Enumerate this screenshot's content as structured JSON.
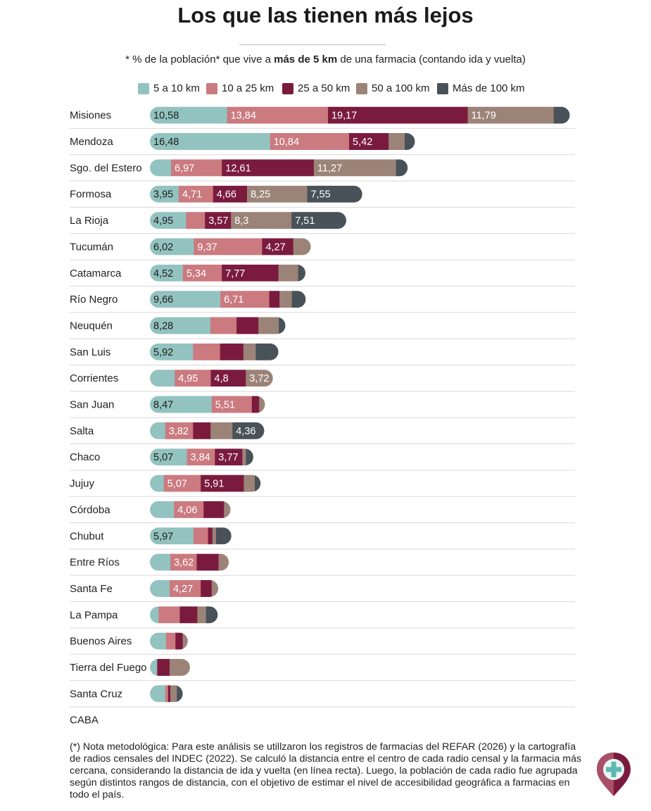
{
  "title": "Los que las tienen más lejos",
  "subtitle": {
    "prefix": "* % de la población* que vive a ",
    "bold": "más de 5 km",
    "suffix": " de una farmacia (contando ida y vuelta)"
  },
  "legend": [
    {
      "label": "5 a 10 km",
      "color": "#93c3c0"
    },
    {
      "label": "10 a 25 km",
      "color": "#cb7a80"
    },
    {
      "label": "25 a 50 km",
      "color": "#7a1b3e"
    },
    {
      "label": "50 a 100 km",
      "color": "#9c8378"
    },
    {
      "label": "Más de 100 km",
      "color": "#485258"
    }
  ],
  "chart_data": {
    "type": "bar",
    "orientation": "horizontal",
    "stacked": true,
    "unit": "% de la población",
    "series": [
      {
        "name": "5 a 10 km",
        "color": "#93c3c0",
        "values": [
          10.58,
          16.48,
          2.9,
          3.95,
          4.95,
          6.02,
          4.52,
          9.66,
          8.28,
          5.92,
          3.4,
          8.47,
          2.1,
          5.07,
          1.9,
          3.3,
          5.97,
          2.8,
          2.7,
          1.2,
          2.2,
          1.0,
          2.1,
          0
        ]
      },
      {
        "name": "10 a 25 km",
        "color": "#cb7a80",
        "values": [
          13.84,
          10.84,
          6.97,
          4.71,
          2.6,
          9.37,
          5.34,
          6.71,
          3.6,
          3.7,
          4.95,
          5.51,
          3.82,
          3.84,
          5.07,
          4.06,
          2.0,
          3.62,
          4.27,
          2.9,
          1.3,
          0,
          0.4,
          0
        ]
      },
      {
        "name": "25 a 50 km",
        "color": "#7a1b3e",
        "values": [
          19.17,
          5.42,
          12.61,
          4.66,
          3.57,
          4.27,
          7.77,
          1.4,
          3.0,
          3.2,
          4.8,
          1.0,
          2.4,
          3.77,
          5.91,
          2.8,
          0.6,
          3.0,
          1.5,
          2.4,
          1.0,
          1.7,
          0.3,
          0
        ]
      },
      {
        "name": "50 a 100 km",
        "color": "#9c8378",
        "values": [
          11.79,
          2.2,
          11.27,
          8.25,
          8.3,
          2.4,
          2.7,
          1.7,
          2.8,
          1.7,
          3.72,
          0.8,
          3.0,
          0.5,
          1.5,
          0.9,
          0.5,
          1.4,
          0.9,
          1.2,
          0.7,
          2.8,
          0.9,
          0
        ]
      },
      {
        "name": "Más de 100 km",
        "color": "#485258",
        "values": [
          2.2,
          1.4,
          1.6,
          7.55,
          7.51,
          0,
          1.0,
          1.9,
          0.9,
          3.1,
          0,
          0,
          4.36,
          1.0,
          0.8,
          0,
          2.1,
          0,
          0,
          1.6,
          0,
          0,
          0.8,
          0
        ]
      }
    ],
    "categories": [
      "Misiones",
      "Mendoza",
      "Sgo. del Estero",
      "Formosa",
      "La Rioja",
      "Tucumán",
      "Catamarca",
      "Río Negro",
      "Neuquén",
      "San Luis",
      "Corrientes",
      "San Juan",
      "Salta",
      "Chaco",
      "Jujuy",
      "Córdoba",
      "Chubut",
      "Entre Ríos",
      "Santa Fe",
      "La Pampa",
      "Buenos Aires",
      "Tierra del Fuego",
      "Santa Cruz",
      "CABA"
    ],
    "labels": [
      [
        "10,58",
        "13,84",
        "19,17",
        "11,79",
        ""
      ],
      [
        "16,48",
        "10,84",
        "5,42",
        "",
        ""
      ],
      [
        "",
        "6,97",
        "12,61",
        "11,27",
        ""
      ],
      [
        "3,95",
        "4,71",
        "4,66",
        "8,25",
        "7,55"
      ],
      [
        "4,95",
        "",
        "3,57",
        "8,3",
        "7,51"
      ],
      [
        "6,02",
        "9,37",
        "4,27",
        "",
        ""
      ],
      [
        "4,52",
        "5,34",
        "7,77",
        "",
        ""
      ],
      [
        "9,66",
        "6,71",
        "",
        "",
        ""
      ],
      [
        "8,28",
        "",
        "",
        "",
        ""
      ],
      [
        "5,92",
        "",
        "",
        "",
        ""
      ],
      [
        "",
        "4,95",
        "4,8",
        "3,72",
        ""
      ],
      [
        "8,47",
        "5,51",
        "",
        "",
        ""
      ],
      [
        "",
        "3,82",
        "",
        "",
        "4,36"
      ],
      [
        "5,07",
        "3,84",
        "3,77",
        "",
        ""
      ],
      [
        "",
        "5,07",
        "5,91",
        "",
        ""
      ],
      [
        "",
        "4,06",
        "",
        "",
        ""
      ],
      [
        "5,97",
        "",
        "",
        "",
        ""
      ],
      [
        "",
        "3,62",
        "",
        "",
        ""
      ],
      [
        "",
        "4,27",
        "",
        "",
        ""
      ],
      [
        "",
        "",
        "",
        "",
        ""
      ],
      [
        "",
        "",
        "",
        "",
        ""
      ],
      [
        "",
        "",
        "",
        "",
        ""
      ],
      [
        "",
        "",
        "",
        "",
        ""
      ],
      [
        "",
        "",
        "",
        "",
        ""
      ]
    ],
    "xlim": [
      0,
      58.3
    ],
    "grid": false,
    "legend_position": "top"
  },
  "footnote": "(*) Nota metodológica: Para este análisis se utillzaron los registros de farmacias del REFAR (2026) y la cartografía de radios censales del INDEC (2022). Se calculó la distancia entre el centro de cada radio censal y la farmacia más cercana, considerando la distancia de ida y vuelta (en línea recta). Luego, la población de cada radio fue agrupada según distintos rangos de distancia, con el objetivo de estimar el nivel de accesibilidad geográfica a farmacias en todo el país.",
  "logo_icon": "pharmacy-location-pin-icon"
}
